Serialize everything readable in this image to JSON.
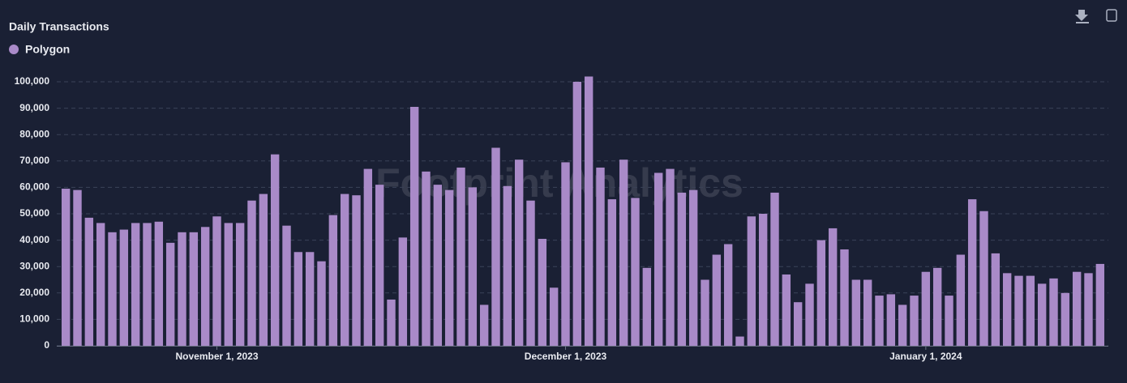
{
  "chart_data": {
    "type": "bar",
    "title": "Daily Transactions",
    "watermark": "Footprint Analytics",
    "categories": [
      null,
      null,
      null,
      null,
      null,
      null,
      null,
      null,
      null,
      null,
      null,
      null,
      null,
      "November 1, 2023",
      null,
      null,
      null,
      null,
      null,
      null,
      null,
      null,
      null,
      null,
      null,
      null,
      null,
      null,
      null,
      null,
      null,
      null,
      null,
      null,
      null,
      null,
      null,
      null,
      null,
      null,
      null,
      null,
      null,
      "December 1, 2023",
      null,
      null,
      null,
      null,
      null,
      null,
      null,
      null,
      null,
      null,
      null,
      null,
      null,
      null,
      null,
      null,
      null,
      null,
      null,
      null,
      null,
      null,
      null,
      null,
      null,
      null,
      null,
      null,
      null,
      null,
      "January 1, 2024",
      null,
      null,
      null,
      null,
      null,
      null,
      null,
      null,
      null,
      null,
      null,
      null,
      null,
      null,
      null
    ],
    "series": [
      {
        "name": "Polygon",
        "color": "#a98ac8",
        "values": [
          59500,
          59000,
          48500,
          46500,
          43000,
          44000,
          46500,
          46500,
          47000,
          39000,
          43000,
          43000,
          45000,
          49000,
          46500,
          46500,
          55000,
          57500,
          72500,
          45500,
          35500,
          35500,
          32000,
          49500,
          57500,
          57000,
          67000,
          61000,
          17500,
          41000,
          90500,
          66000,
          61000,
          59000,
          67500,
          60000,
          15500,
          75000,
          60500,
          70500,
          55000,
          40500,
          22000,
          69500,
          100000,
          102000,
          67500,
          55500,
          70500,
          56000,
          29500,
          65500,
          67000,
          58000,
          59000,
          25000,
          34500,
          38500,
          3500,
          49000,
          50000,
          58000,
          27000,
          16500,
          23500,
          40000,
          44500,
          36500,
          25000,
          25000,
          19000,
          19500,
          15500,
          19000,
          28000,
          29500,
          19000,
          34500,
          55500,
          51000,
          35000,
          27500,
          26500,
          26500,
          23500,
          25500,
          20000,
          28000,
          27500,
          31000
        ]
      }
    ],
    "ylim": [
      0,
      100000
    ],
    "yticks": [
      0,
      {
        "value": 10000,
        "label": "10,000"
      },
      {
        "value": 20000,
        "label": "20,000"
      },
      {
        "value": 30000,
        "label": "30,000"
      },
      {
        "value": 40000,
        "label": "40,000"
      },
      {
        "value": 50000,
        "label": "50,000"
      },
      {
        "value": 60000,
        "label": "60,000"
      },
      {
        "value": 70000,
        "label": "70,000"
      },
      {
        "value": 80000,
        "label": "80,000"
      },
      {
        "value": 90000,
        "label": "90,000"
      },
      {
        "value": 100000,
        "label": "100,000"
      }
    ],
    "grid": true
  }
}
